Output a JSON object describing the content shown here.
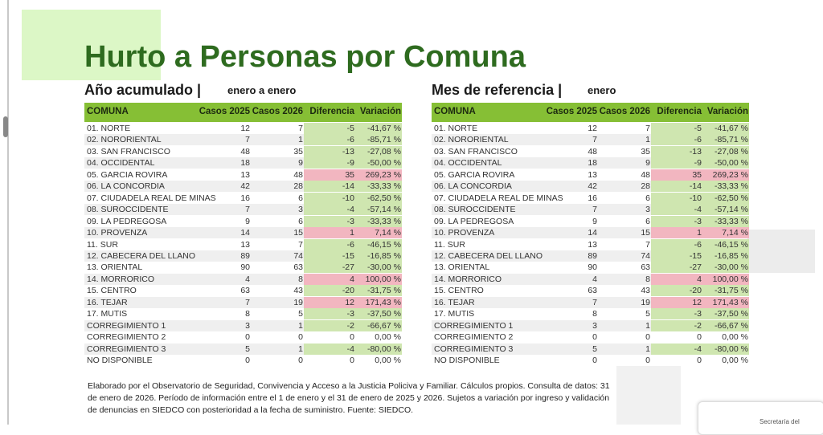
{
  "header": {
    "title": "Hurto a Personas por Comuna"
  },
  "tables": [
    {
      "heading": "Año acumulado |",
      "period": "enero a enero"
    },
    {
      "heading": "Mes de referencia |",
      "period": "enero"
    }
  ],
  "table": {
    "columns": [
      "COMUNA",
      "Casos 2025",
      "Casos 2026",
      "Diferencia",
      "Variación"
    ],
    "rows": [
      [
        "01. NORTE",
        12,
        7,
        -5,
        "-41,67 %"
      ],
      [
        "02. NORORIENTAL",
        7,
        1,
        -6,
        "-85,71 %"
      ],
      [
        "03. SAN FRANCISCO",
        48,
        35,
        -13,
        "-27,08 %"
      ],
      [
        "04. OCCIDENTAL",
        18,
        9,
        -9,
        "-50,00 %"
      ],
      [
        "05. GARCIA ROVIRA",
        13,
        48,
        35,
        "269,23 %"
      ],
      [
        "06. LA CONCORDIA",
        42,
        28,
        -14,
        "-33,33 %"
      ],
      [
        "07. CIUDADELA REAL DE MINAS",
        16,
        6,
        -10,
        "-62,50 %"
      ],
      [
        "08. SUROCCIDENTE",
        7,
        3,
        -4,
        "-57,14 %"
      ],
      [
        "09. LA PEDREGOSA",
        9,
        6,
        -3,
        "-33,33 %"
      ],
      [
        "10. PROVENZA",
        14,
        15,
        1,
        "7,14 %"
      ],
      [
        "11. SUR",
        13,
        7,
        -6,
        "-46,15 %"
      ],
      [
        "12. CABECERA DEL LLANO",
        89,
        74,
        -15,
        "-16,85 %"
      ],
      [
        "13. ORIENTAL",
        90,
        63,
        -27,
        "-30,00 %"
      ],
      [
        "14. MORRORICO",
        4,
        8,
        4,
        "100,00 %"
      ],
      [
        "15. CENTRO",
        63,
        43,
        -20,
        "-31,75 %"
      ],
      [
        "16. TEJAR",
        7,
        19,
        12,
        "171,43 %"
      ],
      [
        "17. MUTIS",
        8,
        5,
        -3,
        "-37,50 %"
      ],
      [
        "CORREGIMIENTO 1",
        3,
        1,
        -2,
        "-66,67 %"
      ],
      [
        "CORREGIMIENTO 2",
        0,
        0,
        0,
        "0,00 %"
      ],
      [
        "CORREGIMIENTO 3",
        5,
        1,
        -4,
        "-80,00 %"
      ],
      [
        "NO DISPONIBLE",
        0,
        0,
        0,
        "0,00 %"
      ]
    ]
  },
  "footer": {
    "note": "Elaborado por el Observatorio de Seguridad, Convivencia y Acceso a la Justicia Policiva y Familiar. Cálculos propios. Consulta de datos: 31 de enero de 2026. Período de información entre el 1 de enero y el 31 de enero de 2025 y 2026. Sujetos a variación por ingreso y validación de denuncias en SIEDCO con posterioridad a la fecha de suministro. Fuente: SIEDCO."
  },
  "logo": {
    "text": "Secretaría del"
  }
}
